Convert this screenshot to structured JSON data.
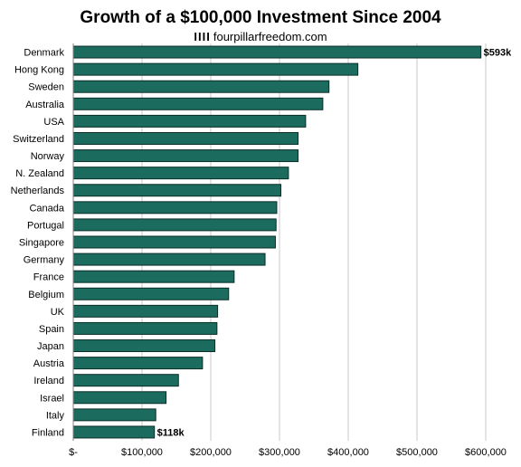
{
  "chart_data": {
    "type": "bar",
    "orientation": "horizontal",
    "title": "Growth of a $100,000 Investment Since 2004",
    "subtitle": "fourpillarfreedom.com",
    "logo_text": "IIII",
    "categories": [
      "Denmark",
      "Hong Kong",
      "Sweden",
      "Australia",
      "USA",
      "Switzerland",
      "Norway",
      "N. Zealand",
      "Netherlands",
      "Canada",
      "Portugal",
      "Singapore",
      "Germany",
      "France",
      "Belgium",
      "UK",
      "Spain",
      "Japan",
      "Austria",
      "Ireland",
      "Israel",
      "Italy",
      "Finland"
    ],
    "values": [
      593000,
      414000,
      372000,
      363000,
      338000,
      327000,
      327000,
      313000,
      302000,
      296000,
      295000,
      294000,
      279000,
      234000,
      226000,
      210000,
      209000,
      206000,
      188000,
      153000,
      135000,
      120000,
      118000
    ],
    "data_labels": [
      {
        "category": "Denmark",
        "text": "$593k"
      },
      {
        "category": "Finland",
        "text": "$118k"
      }
    ],
    "xlim": [
      0,
      600000
    ],
    "xticks": [
      0,
      100000,
      200000,
      300000,
      400000,
      500000,
      600000
    ],
    "xtick_labels": [
      "$-",
      "$100,000",
      "$200,000",
      "$300,000",
      "$400,000",
      "$500,000",
      "$600,000"
    ],
    "xlabel": "",
    "ylabel": "",
    "grid": true,
    "legend": "none",
    "colors": {
      "bar": "#1b6b5f",
      "bar_edge": "#0a2e28",
      "grid": "#c8c8c8",
      "axis": "#808080",
      "text": "#000000"
    }
  }
}
